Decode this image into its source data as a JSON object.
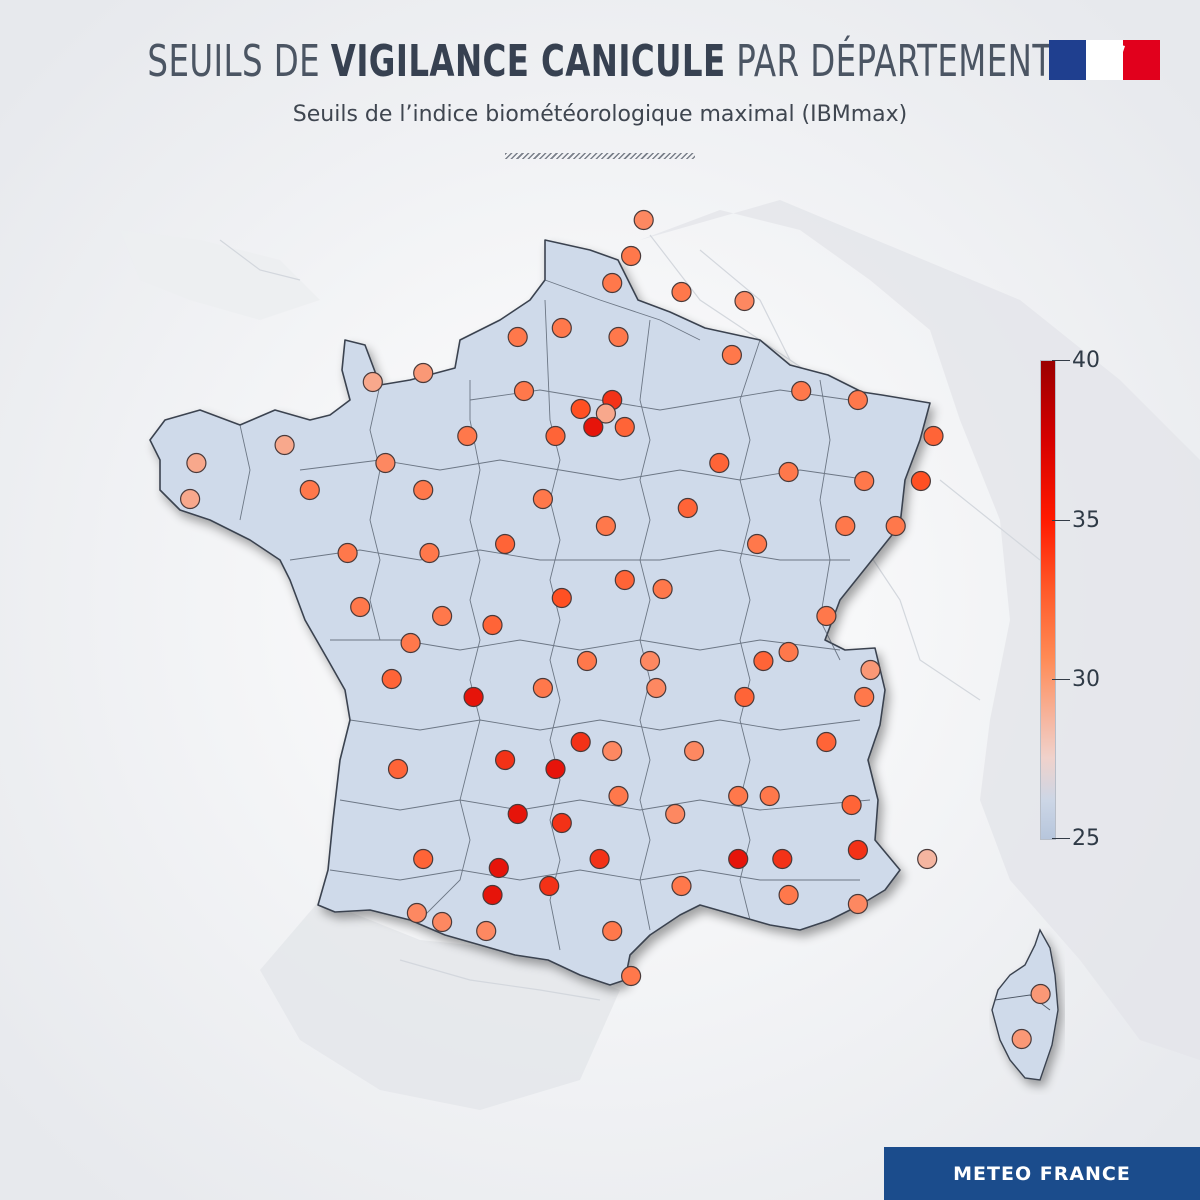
{
  "header": {
    "title_part1": "SEUILS DE ",
    "title_bold": "VIGILANCE CANICULE",
    "title_part2": " PAR DÉPARTEMENT",
    "subtitle": "Seuils de l’indice biométéorologique maximal (IBMmax)"
  },
  "legend": {
    "max": "40",
    "t35": "35",
    "t30": "30",
    "min": "25"
  },
  "footer": {
    "brand": "METEO FRANCE"
  },
  "colors": {
    "land": "#cfdaea",
    "border": "#3a4350",
    "brand_blue": "#1b4c8c"
  },
  "chart_data": {
    "type": "scatter",
    "title": "SEUILS DE VIGILANCE CANICULE PAR DÉPARTEMENT",
    "subtitle": "Seuils de l’indice biométéorologique maximal (IBMmax)",
    "color_scale": {
      "min": 25,
      "max": 40,
      "ticks": [
        25,
        30,
        35,
        40
      ]
    },
    "note": "Each dot is one department's IBMmax threshold; values estimated from dot color",
    "points": [
      {
        "lon": 2.9,
        "lat": 51.0,
        "value": 32
      },
      {
        "lon": 2.7,
        "lat": 50.6,
        "value": 33
      },
      {
        "lon": 2.4,
        "lat": 50.3,
        "value": 33
      },
      {
        "lon": 3.5,
        "lat": 50.2,
        "value": 33
      },
      {
        "lon": 4.5,
        "lat": 50.1,
        "value": 32
      },
      {
        "lon": 1.6,
        "lat": 49.8,
        "value": 33
      },
      {
        "lon": 2.5,
        "lat": 49.7,
        "value": 33
      },
      {
        "lon": 0.9,
        "lat": 49.7,
        "value": 33
      },
      {
        "lon": -0.6,
        "lat": 49.3,
        "value": 31
      },
      {
        "lon": -1.4,
        "lat": 49.2,
        "value": 30
      },
      {
        "lon": 1.0,
        "lat": 49.1,
        "value": 33
      },
      {
        "lon": 2.4,
        "lat": 49.0,
        "value": 36
      },
      {
        "lon": 1.9,
        "lat": 48.9,
        "value": 35
      },
      {
        "lon": 2.3,
        "lat": 48.85,
        "value": 30
      },
      {
        "lon": 2.1,
        "lat": 48.7,
        "value": 37
      },
      {
        "lon": 2.6,
        "lat": 48.7,
        "value": 34
      },
      {
        "lon": 1.5,
        "lat": 48.6,
        "value": 34
      },
      {
        "lon": 0.1,
        "lat": 48.6,
        "value": 33
      },
      {
        "lon": -2.8,
        "lat": 48.5,
        "value": 30
      },
      {
        "lon": -1.2,
        "lat": 48.3,
        "value": 32
      },
      {
        "lon": -4.2,
        "lat": 48.3,
        "value": 30
      },
      {
        "lon": -4.3,
        "lat": 47.9,
        "value": 30
      },
      {
        "lon": -2.4,
        "lat": 48.0,
        "value": 33
      },
      {
        "lon": -0.6,
        "lat": 48.0,
        "value": 33
      },
      {
        "lon": 1.3,
        "lat": 47.9,
        "value": 33
      },
      {
        "lon": 2.3,
        "lat": 47.6,
        "value": 33
      },
      {
        "lon": 0.7,
        "lat": 47.4,
        "value": 34
      },
      {
        "lon": -0.5,
        "lat": 47.3,
        "value": 33
      },
      {
        "lon": -1.8,
        "lat": 47.3,
        "value": 33
      },
      {
        "lon": 4.3,
        "lat": 49.5,
        "value": 33
      },
      {
        "lon": 5.4,
        "lat": 49.1,
        "value": 33
      },
      {
        "lon": 6.3,
        "lat": 49.0,
        "value": 33
      },
      {
        "lon": 7.5,
        "lat": 48.6,
        "value": 34
      },
      {
        "lon": 7.3,
        "lat": 48.1,
        "value": 35
      },
      {
        "lon": 4.1,
        "lat": 48.3,
        "value": 34
      },
      {
        "lon": 5.2,
        "lat": 48.2,
        "value": 33
      },
      {
        "lon": 6.4,
        "lat": 48.1,
        "value": 33
      },
      {
        "lon": 3.6,
        "lat": 47.8,
        "value": 34
      },
      {
        "lon": 4.7,
        "lat": 47.4,
        "value": 33
      },
      {
        "lon": 6.1,
        "lat": 47.6,
        "value": 33
      },
      {
        "lon": 6.9,
        "lat": 47.6,
        "value": 33
      },
      {
        "lon": 2.6,
        "lat": 47.0,
        "value": 34
      },
      {
        "lon": 1.6,
        "lat": 46.8,
        "value": 35
      },
      {
        "lon": 3.2,
        "lat": 46.9,
        "value": 33
      },
      {
        "lon": 5.8,
        "lat": 46.6,
        "value": 33
      },
      {
        "lon": -1.6,
        "lat": 46.7,
        "value": 33
      },
      {
        "lon": -0.3,
        "lat": 46.6,
        "value": 33
      },
      {
        "lon": 0.5,
        "lat": 46.5,
        "value": 34
      },
      {
        "lon": -0.8,
        "lat": 46.3,
        "value": 33
      },
      {
        "lon": -1.1,
        "lat": 45.9,
        "value": 34
      },
      {
        "lon": 0.2,
        "lat": 45.7,
        "value": 37
      },
      {
        "lon": 1.3,
        "lat": 45.8,
        "value": 33
      },
      {
        "lon": 2.0,
        "lat": 46.1,
        "value": 33
      },
      {
        "lon": 3.0,
        "lat": 46.1,
        "value": 32
      },
      {
        "lon": 3.1,
        "lat": 45.8,
        "value": 32
      },
      {
        "lon": 4.8,
        "lat": 46.1,
        "value": 34
      },
      {
        "lon": 5.2,
        "lat": 46.2,
        "value": 33
      },
      {
        "lon": 4.5,
        "lat": 45.7,
        "value": 34
      },
      {
        "lon": 6.5,
        "lat": 46.0,
        "value": 31
      },
      {
        "lon": 6.4,
        "lat": 45.7,
        "value": 33
      },
      {
        "lon": 1.9,
        "lat": 45.2,
        "value": 36
      },
      {
        "lon": 0.7,
        "lat": 45.0,
        "value": 36
      },
      {
        "lon": 1.5,
        "lat": 44.9,
        "value": 37
      },
      {
        "lon": 2.4,
        "lat": 45.1,
        "value": 32
      },
      {
        "lon": 3.7,
        "lat": 45.1,
        "value": 32
      },
      {
        "lon": 5.8,
        "lat": 45.2,
        "value": 34
      },
      {
        "lon": -1.0,
        "lat": 44.9,
        "value": 34
      },
      {
        "lon": 0.9,
        "lat": 44.4,
        "value": 37
      },
      {
        "lon": 1.6,
        "lat": 44.3,
        "value": 36
      },
      {
        "lon": 2.5,
        "lat": 44.6,
        "value": 33
      },
      {
        "lon": 3.4,
        "lat": 44.4,
        "value": 32
      },
      {
        "lon": 4.4,
        "lat": 44.6,
        "value": 33
      },
      {
        "lon": 4.9,
        "lat": 44.6,
        "value": 33
      },
      {
        "lon": 6.2,
        "lat": 44.5,
        "value": 34
      },
      {
        "lon": 6.3,
        "lat": 44.0,
        "value": 36
      },
      {
        "lon": 7.4,
        "lat": 43.9,
        "value": 29
      },
      {
        "lon": 5.1,
        "lat": 43.9,
        "value": 36
      },
      {
        "lon": 4.4,
        "lat": 43.9,
        "value": 37
      },
      {
        "lon": 2.2,
        "lat": 43.9,
        "value": 36
      },
      {
        "lon": 1.4,
        "lat": 43.6,
        "value": 36
      },
      {
        "lon": 0.6,
        "lat": 43.8,
        "value": 37
      },
      {
        "lon": 0.5,
        "lat": 43.5,
        "value": 37
      },
      {
        "lon": -0.6,
        "lat": 43.9,
        "value": 34
      },
      {
        "lon": 3.5,
        "lat": 43.6,
        "value": 33
      },
      {
        "lon": 5.2,
        "lat": 43.5,
        "value": 33
      },
      {
        "lon": 6.3,
        "lat": 43.4,
        "value": 32
      },
      {
        "lon": -0.7,
        "lat": 43.3,
        "value": 32
      },
      {
        "lon": -0.3,
        "lat": 43.2,
        "value": 32
      },
      {
        "lon": 0.4,
        "lat": 43.1,
        "value": 32
      },
      {
        "lon": 2.4,
        "lat": 43.1,
        "value": 33
      },
      {
        "lon": 2.7,
        "lat": 42.6,
        "value": 33
      },
      {
        "lon": 9.2,
        "lat": 42.4,
        "value": 31
      },
      {
        "lon": 8.9,
        "lat": 41.9,
        "value": 31
      }
    ]
  }
}
